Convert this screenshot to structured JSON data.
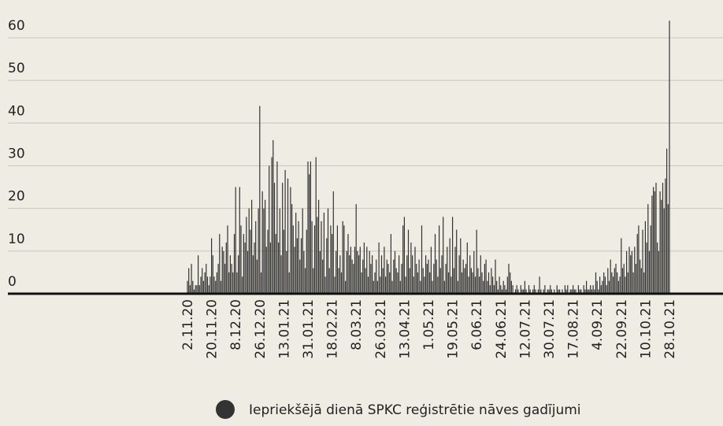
{
  "chart_data": {
    "type": "bar",
    "categories": [
      "2.11.20",
      null,
      null,
      null,
      null,
      null,
      null,
      null,
      null,
      null,
      null,
      null,
      null,
      null,
      null,
      null,
      null,
      null,
      "20.11.20",
      null,
      null,
      null,
      null,
      null,
      null,
      null,
      null,
      null,
      null,
      null,
      null,
      null,
      null,
      null,
      null,
      null,
      "8.12.20",
      null,
      null,
      null,
      null,
      null,
      null,
      null,
      null,
      null,
      null,
      null,
      null,
      null,
      null,
      null,
      null,
      null,
      "26.12.20",
      null,
      null,
      null,
      null,
      null,
      null,
      null,
      null,
      null,
      null,
      null,
      null,
      null,
      null,
      null,
      null,
      null,
      "13.01.21",
      null,
      null,
      null,
      null,
      null,
      null,
      null,
      null,
      null,
      null,
      null,
      null,
      null,
      null,
      null,
      null,
      null,
      "31.01.21",
      null,
      null,
      null,
      null,
      null,
      null,
      null,
      null,
      null,
      null,
      null,
      null,
      null,
      null,
      null,
      null,
      null,
      "18.02.21",
      null,
      null,
      null,
      null,
      null,
      null,
      null,
      null,
      null,
      null,
      null,
      null,
      null,
      null,
      null,
      null,
      null,
      "8.03.21",
      null,
      null,
      null,
      null,
      null,
      null,
      null,
      null,
      null,
      null,
      null,
      null,
      null,
      null,
      null,
      null,
      null,
      "26.03.21",
      null,
      null,
      null,
      null,
      null,
      null,
      null,
      null,
      null,
      null,
      null,
      null,
      null,
      null,
      null,
      null,
      null,
      "13.04.21",
      null,
      null,
      null,
      null,
      null,
      null,
      null,
      null,
      null,
      null,
      null,
      null,
      null,
      null,
      null,
      null,
      null,
      "1.05.21",
      null,
      null,
      null,
      null,
      null,
      null,
      null,
      null,
      null,
      null,
      null,
      null,
      null,
      null,
      null,
      null,
      null,
      "19.05.21",
      null,
      null,
      null,
      null,
      null,
      null,
      null,
      null,
      null,
      null,
      null,
      null,
      null,
      null,
      null,
      null,
      null,
      "6.06.21",
      null,
      null,
      null,
      null,
      null,
      null,
      null,
      null,
      null,
      null,
      null,
      null,
      null,
      null,
      null,
      null,
      null,
      "24.06.21",
      null,
      null,
      null,
      null,
      null,
      null,
      null,
      null,
      null,
      null,
      null,
      null,
      null,
      null,
      null,
      null,
      null,
      "12.07.21",
      null,
      null,
      null,
      null,
      null,
      null,
      null,
      null,
      null,
      null,
      null,
      null,
      null,
      null,
      null,
      null,
      null,
      "30.07.21",
      null,
      null,
      null,
      null,
      null,
      null,
      null,
      null,
      null,
      null,
      null,
      null,
      null,
      null,
      null,
      null,
      null,
      "17.08.21",
      null,
      null,
      null,
      null,
      null,
      null,
      null,
      null,
      null,
      null,
      null,
      null,
      null,
      null,
      null,
      null,
      null,
      "4.09.21",
      null,
      null,
      null,
      null,
      null,
      null,
      null,
      null,
      null,
      null,
      null,
      null,
      null,
      null,
      null,
      null,
      null,
      "22.09.21",
      null,
      null,
      null,
      null,
      null,
      null,
      null,
      null,
      null,
      null,
      null,
      null,
      null,
      null,
      null,
      null,
      null,
      "10.10.21",
      null,
      null,
      null,
      null,
      null,
      null,
      null,
      null,
      null,
      null,
      null,
      null,
      null,
      null,
      null,
      null,
      null,
      "28.10.21"
    ],
    "series": [
      {
        "name": "Iepriekšējā dienā SPKC reģistrētie nāves gadījumi",
        "color": "#333333",
        "values": [
          3,
          6,
          2,
          7,
          3,
          1,
          2,
          2,
          9,
          2,
          4,
          6,
          3,
          5,
          7,
          4,
          2,
          4,
          13,
          9,
          4,
          3,
          5,
          7,
          14,
          3,
          11,
          10,
          7,
          12,
          16,
          5,
          9,
          7,
          5,
          14,
          25,
          5,
          9,
          25,
          16,
          4,
          14,
          12,
          18,
          10,
          20,
          15,
          22,
          9,
          12,
          17,
          8,
          20,
          44,
          5,
          24,
          20,
          22,
          11,
          15,
          30,
          12,
          32,
          36,
          26,
          14,
          31,
          12,
          20,
          9,
          26,
          15,
          29,
          10,
          27,
          5,
          25,
          21,
          16,
          11,
          19,
          13,
          17,
          8,
          13,
          20,
          10,
          6,
          15,
          31,
          28,
          31,
          17,
          6,
          16,
          32,
          18,
          22,
          10,
          17,
          8,
          19,
          4,
          13,
          20,
          6,
          16,
          14,
          24,
          4,
          10,
          16,
          6,
          9,
          5,
          17,
          16,
          3,
          10,
          14,
          9,
          11,
          8,
          7,
          11,
          21,
          10,
          9,
          11,
          5,
          8,
          12,
          6,
          11,
          4,
          10,
          7,
          9,
          3,
          5,
          8,
          3,
          12,
          4,
          9,
          6,
          11,
          4,
          8,
          7,
          5,
          14,
          3,
          8,
          10,
          6,
          5,
          9,
          3,
          7,
          16,
          18,
          4,
          9,
          15,
          6,
          12,
          9,
          4,
          11,
          7,
          5,
          8,
          3,
          16,
          6,
          4,
          9,
          7,
          8,
          5,
          11,
          3,
          7,
          14,
          8,
          4,
          16,
          6,
          9,
          18,
          3,
          7,
          11,
          5,
          13,
          4,
          18,
          6,
          11,
          15,
          3,
          9,
          13,
          5,
          8,
          6,
          7,
          12,
          4,
          9,
          6,
          5,
          10,
          4,
          15,
          6,
          4,
          9,
          5,
          3,
          7,
          8,
          3,
          5,
          2,
          6,
          4,
          2,
          8,
          3,
          1,
          4,
          2,
          1,
          3,
          2,
          1,
          4,
          7,
          5,
          3,
          2,
          0,
          1,
          2,
          1,
          0,
          2,
          1,
          1,
          3,
          1,
          0,
          2,
          1,
          0,
          1,
          2,
          1,
          0,
          1,
          4,
          1,
          0,
          1,
          2,
          0,
          1,
          1,
          2,
          1,
          0,
          1,
          0,
          2,
          1,
          1,
          0,
          1,
          0,
          2,
          1,
          2,
          0,
          1,
          1,
          2,
          1,
          1,
          0,
          2,
          1,
          1,
          0,
          2,
          1,
          3,
          1,
          1,
          2,
          1,
          2,
          1,
          5,
          3,
          1,
          4,
          2,
          3,
          5,
          4,
          2,
          6,
          3,
          8,
          5,
          4,
          6,
          7,
          5,
          3,
          4,
          13,
          6,
          7,
          4,
          10,
          5,
          11,
          9,
          10,
          5,
          11,
          7,
          14,
          16,
          8,
          6,
          15,
          5,
          17,
          12,
          21,
          10,
          16,
          23,
          25,
          24,
          26,
          12,
          10,
          24,
          22,
          26,
          20,
          27,
          34,
          21,
          64
        ]
      }
    ],
    "ylim": [
      0,
      68
    ],
    "yticks": [
      0,
      10,
      20,
      30,
      40,
      50,
      60
    ],
    "grid": true
  }
}
